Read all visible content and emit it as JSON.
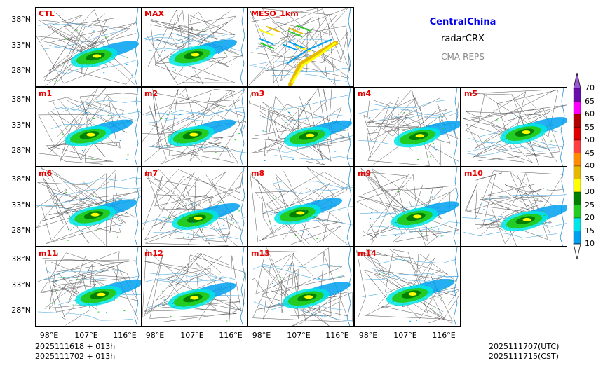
{
  "title": {
    "region": "CentralChina",
    "variable": "radarCRX",
    "model": "CMA-REPS"
  },
  "panels": [
    "CTL",
    "MAX",
    "MESO_1km",
    "m1",
    "m2",
    "m3",
    "m4",
    "m5",
    "m6",
    "m7",
    "m8",
    "m9",
    "m10",
    "m11",
    "m12",
    "m13",
    "m14"
  ],
  "yticks": [
    "38°N",
    "33°N",
    "28°N"
  ],
  "xticks": [
    "98°E",
    "107°E",
    "116°E"
  ],
  "colorbar": {
    "labels": [
      "70",
      "65",
      "60",
      "55",
      "50",
      "45",
      "40",
      "35",
      "30",
      "25",
      "20",
      "15",
      "10"
    ],
    "colors": [
      "#9b59d0",
      "#6a0dad",
      "#ff00ff",
      "#b00000",
      "#e00000",
      "#ff4040",
      "#ff8c00",
      "#e6b800",
      "#ffff00",
      "#008000",
      "#22cc22",
      "#00e5e5",
      "#00a0f0",
      "#ffffff"
    ]
  },
  "footer": {
    "init_time": "2025111618  +  013h",
    "init_time_cst": "2025111702  +  013h",
    "valid_utc": "2025111707(UTC)",
    "valid_cst": "2025111715(CST)"
  }
}
